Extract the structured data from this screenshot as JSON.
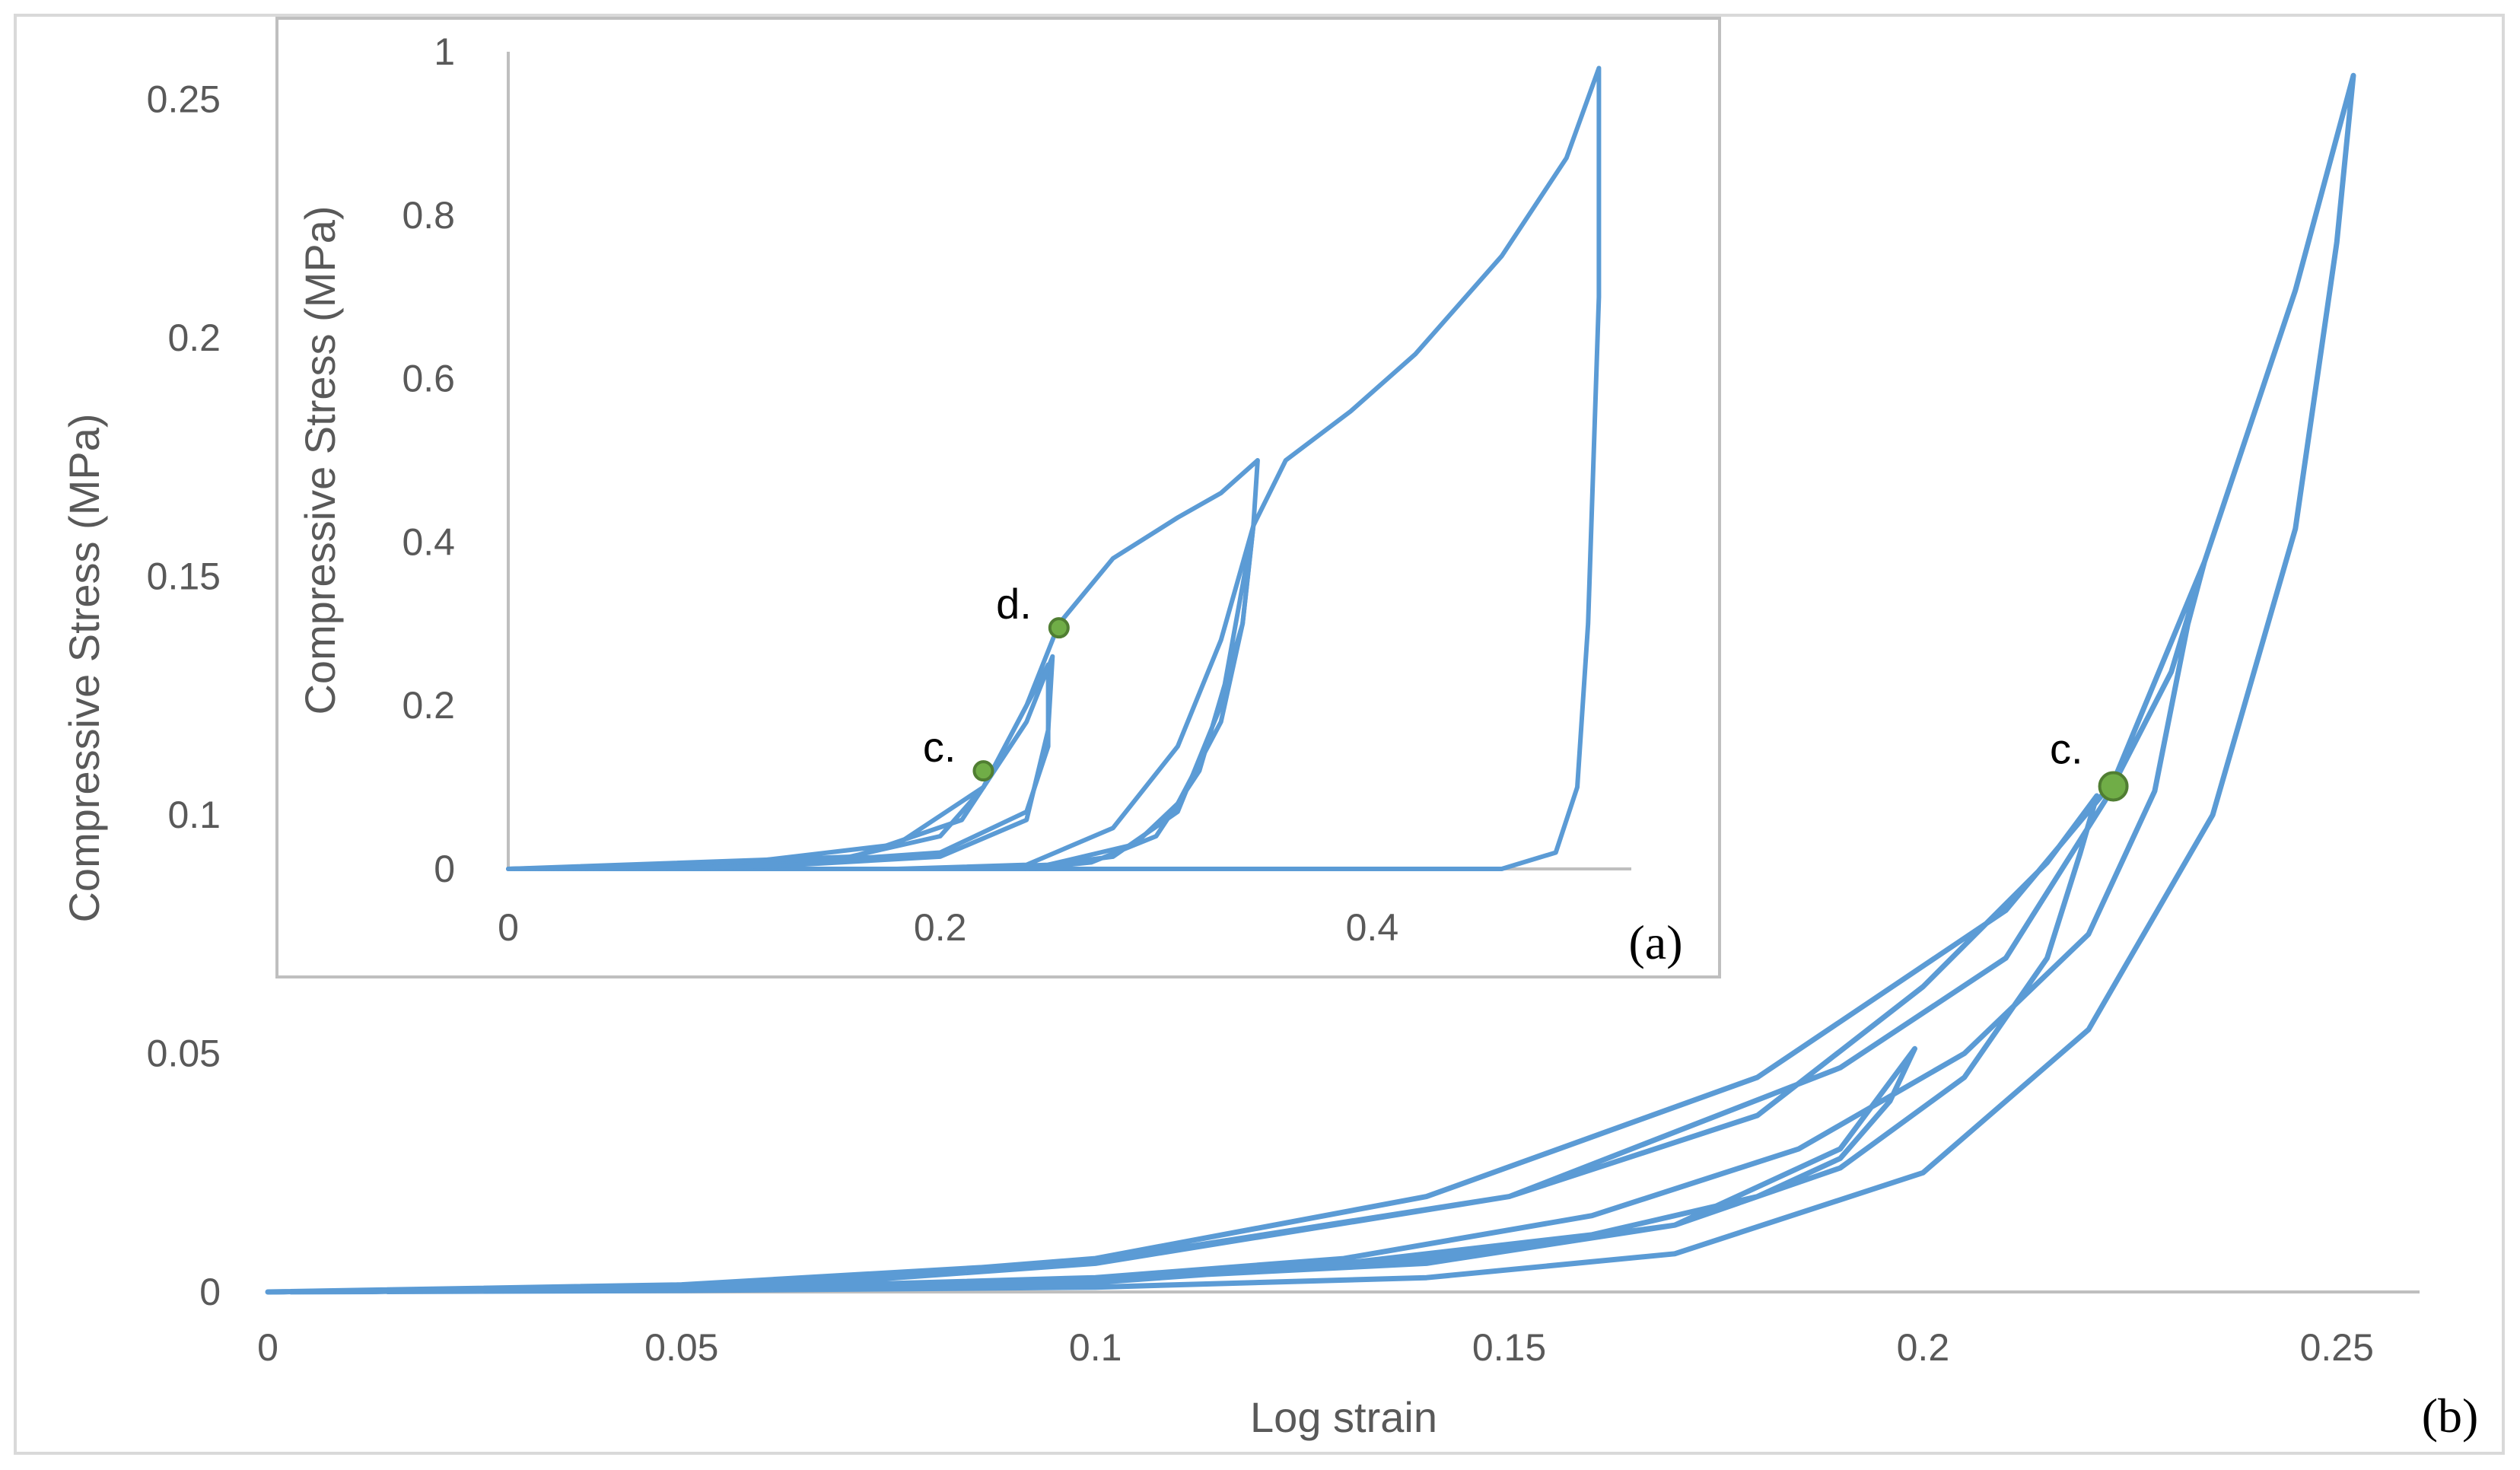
{
  "chart_data": [
    {
      "type": "line",
      "panel_label": "(b)",
      "xlabel": "Log strain",
      "ylabel": "Compressive Stress (MPa)",
      "xlim": [
        0,
        0.26
      ],
      "ylim": [
        0,
        0.26
      ],
      "x_ticks": [
        "0",
        "0.05",
        "0.1",
        "0.15",
        "0.2",
        "0.25"
      ],
      "y_ticks": [
        "0",
        "0.05",
        "0.1",
        "0.15",
        "0.2",
        "0.25"
      ],
      "grid": false,
      "series_color": "#5B9BD5",
      "series": [
        {
          "values": [
            [
              0.0,
              0.0
            ],
            [
              0.05,
              0.0008
            ],
            [
              0.1,
              0.0025
            ],
            [
              0.14,
              0.006
            ],
            [
              0.17,
              0.014
            ],
            [
              0.19,
              0.03
            ],
            [
              0.199,
              0.051
            ],
            [
              0.196,
              0.04
            ],
            [
              0.19,
              0.028
            ],
            [
              0.18,
              0.02
            ],
            [
              0.16,
              0.012
            ],
            [
              0.13,
              0.006
            ],
            [
              0.1,
              0.002
            ],
            [
              0.06,
              0.0008
            ],
            [
              0.0,
              0.0
            ],
            [
              0.05,
              0.0015
            ],
            [
              0.1,
              0.0065
            ],
            [
              0.15,
              0.02
            ],
            [
              0.18,
              0.037
            ],
            [
              0.2,
              0.064
            ],
            [
              0.215,
              0.09
            ],
            [
              0.221,
              0.104
            ],
            [
              0.219,
              0.092
            ],
            [
              0.215,
              0.07
            ],
            [
              0.205,
              0.045
            ],
            [
              0.19,
              0.026
            ],
            [
              0.17,
              0.014
            ],
            [
              0.14,
              0.007
            ],
            [
              0.1,
              0.002
            ],
            [
              0.05,
              0.0005
            ],
            [
              0.0,
              0.0
            ],
            [
              0.06,
              0.001
            ],
            [
              0.1,
              0.006
            ],
            [
              0.15,
              0.02
            ],
            [
              0.19,
              0.047
            ],
            [
              0.21,
              0.07
            ],
            [
              0.222,
              0.103
            ],
            [
              0.23,
              0.13
            ],
            [
              0.234,
              0.153
            ],
            [
              0.232,
              0.14
            ],
            [
              0.228,
              0.105
            ],
            [
              0.22,
              0.075
            ],
            [
              0.205,
              0.05
            ],
            [
              0.185,
              0.03
            ],
            [
              0.16,
              0.016
            ],
            [
              0.13,
              0.007
            ],
            [
              0.1,
              0.003
            ],
            [
              0.05,
              0.0005
            ],
            [
              0.0,
              0.0
            ],
            [
              0.06,
              0.0015
            ],
            [
              0.1,
              0.007
            ],
            [
              0.14,
              0.02
            ],
            [
              0.18,
              0.045
            ],
            [
              0.21,
              0.08
            ],
            [
              0.223,
              0.107
            ],
            [
              0.234,
              0.153
            ],
            [
              0.245,
              0.21
            ],
            [
              0.252,
              0.255
            ],
            [
              0.25,
              0.22
            ],
            [
              0.245,
              0.16
            ],
            [
              0.235,
              0.1
            ],
            [
              0.22,
              0.055
            ],
            [
              0.2,
              0.025
            ],
            [
              0.17,
              0.008
            ],
            [
              0.14,
              0.003
            ],
            [
              0.1,
              0.001
            ],
            [
              0.05,
              0.0003
            ],
            [
              0.0,
              0.0
            ]
          ]
        }
      ],
      "markers": [
        {
          "label": "c.",
          "x": 0.223,
          "y": 0.106,
          "color": "#70AD47"
        }
      ]
    },
    {
      "type": "line",
      "panel_label": "(a)",
      "xlabel": "",
      "ylabel": "Compressive Stress (MPa)",
      "xlim": [
        0,
        0.52
      ],
      "ylim": [
        0,
        1
      ],
      "x_ticks": [
        "0",
        "0.2",
        "0.4"
      ],
      "y_ticks": [
        "0",
        "0.2",
        "0.4",
        "0.6",
        "0.8",
        "1"
      ],
      "grid": false,
      "series_color": "#5B9BD5",
      "series": [
        {
          "values": [
            [
              0.0,
              0.0
            ],
            [
              0.1,
              0.005
            ],
            [
              0.18,
              0.03
            ],
            [
              0.22,
              0.1
            ],
            [
              0.24,
              0.2
            ],
            [
              0.255,
              0.3
            ],
            [
              0.28,
              0.38
            ],
            [
              0.31,
              0.43
            ],
            [
              0.33,
              0.46
            ],
            [
              0.347,
              0.5
            ],
            [
              0.345,
              0.42
            ],
            [
              0.34,
              0.3
            ],
            [
              0.33,
              0.18
            ],
            [
              0.31,
              0.08
            ],
            [
              0.29,
              0.03
            ],
            [
              0.25,
              0.005
            ],
            [
              0.2,
              0.0
            ],
            [
              0.0,
              0.0
            ],
            [
              0.18,
              0.0
            ],
            [
              0.24,
              0.005
            ],
            [
              0.28,
              0.05
            ],
            [
              0.31,
              0.15
            ],
            [
              0.33,
              0.28
            ],
            [
              0.345,
              0.42
            ],
            [
              0.36,
              0.5
            ],
            [
              0.39,
              0.56
            ],
            [
              0.42,
              0.63
            ],
            [
              0.46,
              0.75
            ],
            [
              0.49,
              0.87
            ],
            [
              0.505,
              0.98
            ],
            [
              0.505,
              0.7
            ],
            [
              0.5,
              0.3
            ],
            [
              0.495,
              0.1
            ],
            [
              0.485,
              0.02
            ],
            [
              0.46,
              0.0
            ],
            [
              0.3,
              0.0
            ],
            [
              0.0,
              0.0
            ]
          ]
        },
        {
          "values": [
            [
              0.0,
              0.0
            ],
            [
              0.15,
              0.01
            ],
            [
              0.2,
              0.04
            ],
            [
              0.22,
              0.1
            ],
            [
              0.25,
              0.25
            ],
            [
              0.25,
              0.15
            ],
            [
              0.24,
              0.07
            ],
            [
              0.2,
              0.02
            ],
            [
              0.1,
              0.002
            ],
            [
              0.0,
              0.0
            ]
          ]
        },
        {
          "values": [
            [
              0.0,
              0.0
            ],
            [
              0.16,
              0.015
            ],
            [
              0.21,
              0.06
            ],
            [
              0.24,
              0.18
            ],
            [
              0.252,
              0.26
            ],
            [
              0.25,
              0.17
            ],
            [
              0.24,
              0.06
            ],
            [
              0.2,
              0.015
            ],
            [
              0.12,
              0.003
            ],
            [
              0.0,
              0.0
            ]
          ]
        },
        {
          "values": [
            [
              0.25,
              0.005
            ],
            [
              0.28,
              0.015
            ],
            [
              0.31,
              0.07
            ],
            [
              0.33,
              0.2
            ],
            [
              0.345,
              0.42
            ],
            [
              0.34,
              0.3
            ],
            [
              0.32,
              0.12
            ],
            [
              0.3,
              0.04
            ],
            [
              0.27,
              0.008
            ],
            [
              0.24,
              0.0
            ]
          ]
        }
      ],
      "markers": [
        {
          "label": "c.",
          "x": 0.22,
          "y": 0.12,
          "color": "#70AD47"
        },
        {
          "label": "d.",
          "x": 0.255,
          "y": 0.295,
          "color": "#70AD47"
        }
      ]
    }
  ]
}
